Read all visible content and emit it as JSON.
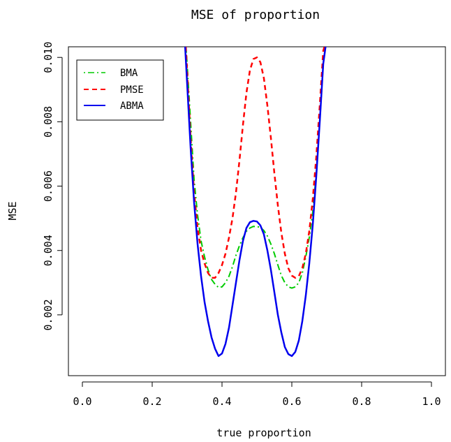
{
  "chart_data": {
    "type": "line",
    "title": "MSE of proportion",
    "xlabel": "true proportion",
    "ylabel": "MSE",
    "xlim": [
      -0.04,
      1.04
    ],
    "ylim": [
      0.00011,
      0.01033
    ],
    "x_ticks": [
      "0.0",
      "0.2",
      "0.4",
      "0.6",
      "0.8",
      "1.0"
    ],
    "y_ticks": [
      "0.002",
      "0.004",
      "0.006",
      "0.008",
      "0.010"
    ],
    "grid": false,
    "legend_position": "top-left",
    "series": [
      {
        "name": "BMA",
        "color": "#00cc00",
        "linestyle": "dotdash",
        "points": [
          [
            0.295,
            0.0106
          ],
          [
            0.3,
            0.0098
          ],
          [
            0.31,
            0.008
          ],
          [
            0.32,
            0.0062
          ],
          [
            0.33,
            0.0051
          ],
          [
            0.34,
            0.0043
          ],
          [
            0.35,
            0.0038
          ],
          [
            0.36,
            0.0034
          ],
          [
            0.37,
            0.0031
          ],
          [
            0.38,
            0.00295
          ],
          [
            0.39,
            0.00285
          ],
          [
            0.4,
            0.00287
          ],
          [
            0.41,
            0.003
          ],
          [
            0.42,
            0.0032
          ],
          [
            0.43,
            0.0035
          ],
          [
            0.44,
            0.00385
          ],
          [
            0.45,
            0.00415
          ],
          [
            0.46,
            0.0044
          ],
          [
            0.47,
            0.0046
          ],
          [
            0.48,
            0.0047
          ],
          [
            0.49,
            0.00475
          ],
          [
            0.5,
            0.00474
          ],
          [
            0.51,
            0.00472
          ],
          [
            0.52,
            0.00462
          ],
          [
            0.53,
            0.00445
          ],
          [
            0.54,
            0.0042
          ],
          [
            0.55,
            0.0039
          ],
          [
            0.56,
            0.00355
          ],
          [
            0.57,
            0.00322
          ],
          [
            0.58,
            0.003
          ],
          [
            0.59,
            0.00287
          ],
          [
            0.6,
            0.00283
          ],
          [
            0.61,
            0.00287
          ],
          [
            0.62,
            0.003
          ],
          [
            0.63,
            0.0033
          ],
          [
            0.64,
            0.0038
          ],
          [
            0.65,
            0.0044
          ],
          [
            0.66,
            0.0052
          ],
          [
            0.67,
            0.0064
          ],
          [
            0.68,
            0.008
          ],
          [
            0.69,
            0.0098
          ],
          [
            0.7,
            0.0106
          ]
        ]
      },
      {
        "name": "PMSE",
        "color": "#ff0000",
        "linestyle": "dashed",
        "points": [
          [
            0.295,
            0.0106
          ],
          [
            0.3,
            0.0096
          ],
          [
            0.31,
            0.0075
          ],
          [
            0.32,
            0.0058
          ],
          [
            0.33,
            0.0047
          ],
          [
            0.34,
            0.004
          ],
          [
            0.35,
            0.0036
          ],
          [
            0.36,
            0.0033
          ],
          [
            0.37,
            0.00315
          ],
          [
            0.38,
            0.00315
          ],
          [
            0.39,
            0.0033
          ],
          [
            0.4,
            0.00355
          ],
          [
            0.41,
            0.0039
          ],
          [
            0.42,
            0.0044
          ],
          [
            0.43,
            0.005
          ],
          [
            0.44,
            0.0058
          ],
          [
            0.45,
            0.0068
          ],
          [
            0.46,
            0.0079
          ],
          [
            0.47,
            0.0089
          ],
          [
            0.48,
            0.0096
          ],
          [
            0.49,
            0.00995
          ],
          [
            0.5,
            0.01
          ],
          [
            0.51,
            0.00985
          ],
          [
            0.52,
            0.00935
          ],
          [
            0.53,
            0.0085
          ],
          [
            0.54,
            0.0075
          ],
          [
            0.55,
            0.0064
          ],
          [
            0.56,
            0.0054
          ],
          [
            0.57,
            0.00455
          ],
          [
            0.58,
            0.0039
          ],
          [
            0.59,
            0.00345
          ],
          [
            0.6,
            0.00322
          ],
          [
            0.61,
            0.00315
          ],
          [
            0.62,
            0.0032
          ],
          [
            0.63,
            0.00345
          ],
          [
            0.64,
            0.0039
          ],
          [
            0.65,
            0.0046
          ],
          [
            0.66,
            0.0056
          ],
          [
            0.67,
            0.0069
          ],
          [
            0.68,
            0.0085
          ],
          [
            0.69,
            0.0102
          ],
          [
            0.7,
            0.0106
          ]
        ]
      },
      {
        "name": "ABMA",
        "color": "#0000ee",
        "linestyle": "solid",
        "points": [
          [
            0.293,
            0.0106
          ],
          [
            0.3,
            0.0092
          ],
          [
            0.31,
            0.0072
          ],
          [
            0.32,
            0.0055
          ],
          [
            0.33,
            0.0042
          ],
          [
            0.34,
            0.0032
          ],
          [
            0.35,
            0.0024
          ],
          [
            0.36,
            0.0018
          ],
          [
            0.37,
            0.0013
          ],
          [
            0.38,
            0.00095
          ],
          [
            0.39,
            0.00072
          ],
          [
            0.4,
            0.0008
          ],
          [
            0.41,
            0.0011
          ],
          [
            0.42,
            0.0016
          ],
          [
            0.43,
            0.0023
          ],
          [
            0.44,
            0.003
          ],
          [
            0.45,
            0.0037
          ],
          [
            0.46,
            0.0043
          ],
          [
            0.47,
            0.0047
          ],
          [
            0.48,
            0.00488
          ],
          [
            0.49,
            0.00492
          ],
          [
            0.5,
            0.0049
          ],
          [
            0.51,
            0.00478
          ],
          [
            0.52,
            0.0045
          ],
          [
            0.53,
            0.004
          ],
          [
            0.54,
            0.0034
          ],
          [
            0.55,
            0.0027
          ],
          [
            0.56,
            0.002
          ],
          [
            0.57,
            0.00145
          ],
          [
            0.58,
            0.001
          ],
          [
            0.59,
            0.00078
          ],
          [
            0.6,
            0.00072
          ],
          [
            0.61,
            0.00085
          ],
          [
            0.62,
            0.0012
          ],
          [
            0.63,
            0.0018
          ],
          [
            0.64,
            0.0026
          ],
          [
            0.65,
            0.0036
          ],
          [
            0.66,
            0.0048
          ],
          [
            0.67,
            0.0063
          ],
          [
            0.68,
            0.008
          ],
          [
            0.69,
            0.0098
          ],
          [
            0.7,
            0.0106
          ]
        ]
      }
    ]
  }
}
